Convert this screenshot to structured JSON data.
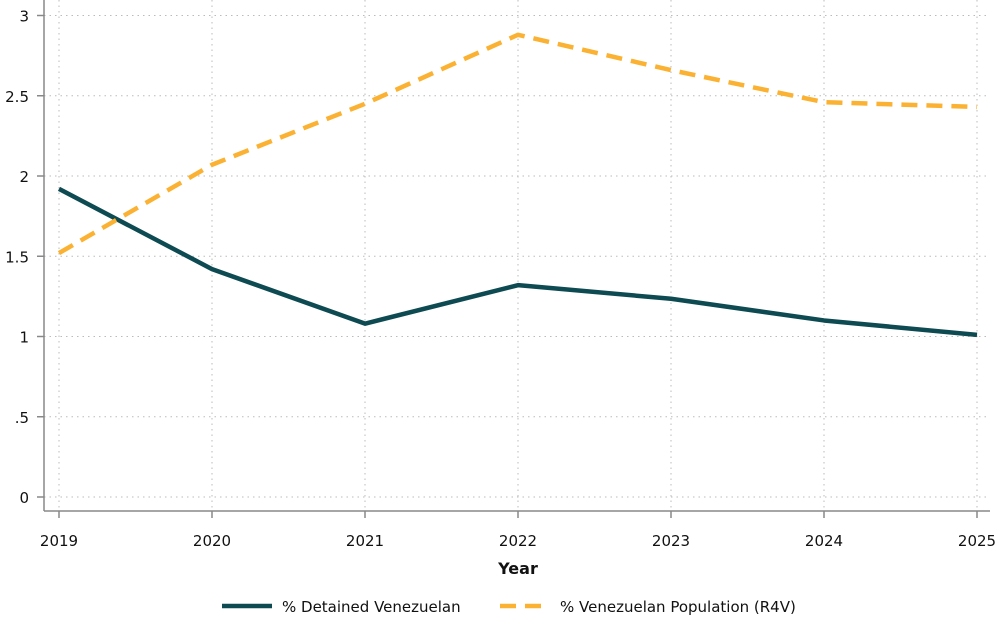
{
  "chart_data": {
    "type": "line",
    "title": "",
    "xlabel": "Year",
    "ylabel": "",
    "x": [
      2019,
      2020,
      2021,
      2022,
      2023,
      2024,
      2025
    ],
    "x_tick_labels": [
      "2019",
      "2020",
      "2021",
      "2022",
      "2023",
      "2024",
      "2025"
    ],
    "y_ticks": [
      0,
      0.5,
      1,
      1.5,
      2,
      2.5,
      3
    ],
    "y_tick_labels": [
      "0",
      ".5",
      "1",
      "1.5",
      "2",
      "2.5",
      "3"
    ],
    "ylim": [
      0,
      3
    ],
    "grid": true,
    "legend_position": "bottom",
    "series": [
      {
        "name": "% Detained Venezuelan",
        "color": "#0d4a52",
        "style": "solid",
        "values": [
          1.92,
          1.42,
          1.08,
          1.32,
          1.235,
          1.1,
          1.01
        ]
      },
      {
        "name": "% Venezuelan Population (R4V)",
        "color": "#fbb131",
        "style": "dashed",
        "values": [
          1.52,
          2.07,
          2.45,
          2.88,
          2.66,
          2.46,
          2.43
        ]
      }
    ]
  }
}
